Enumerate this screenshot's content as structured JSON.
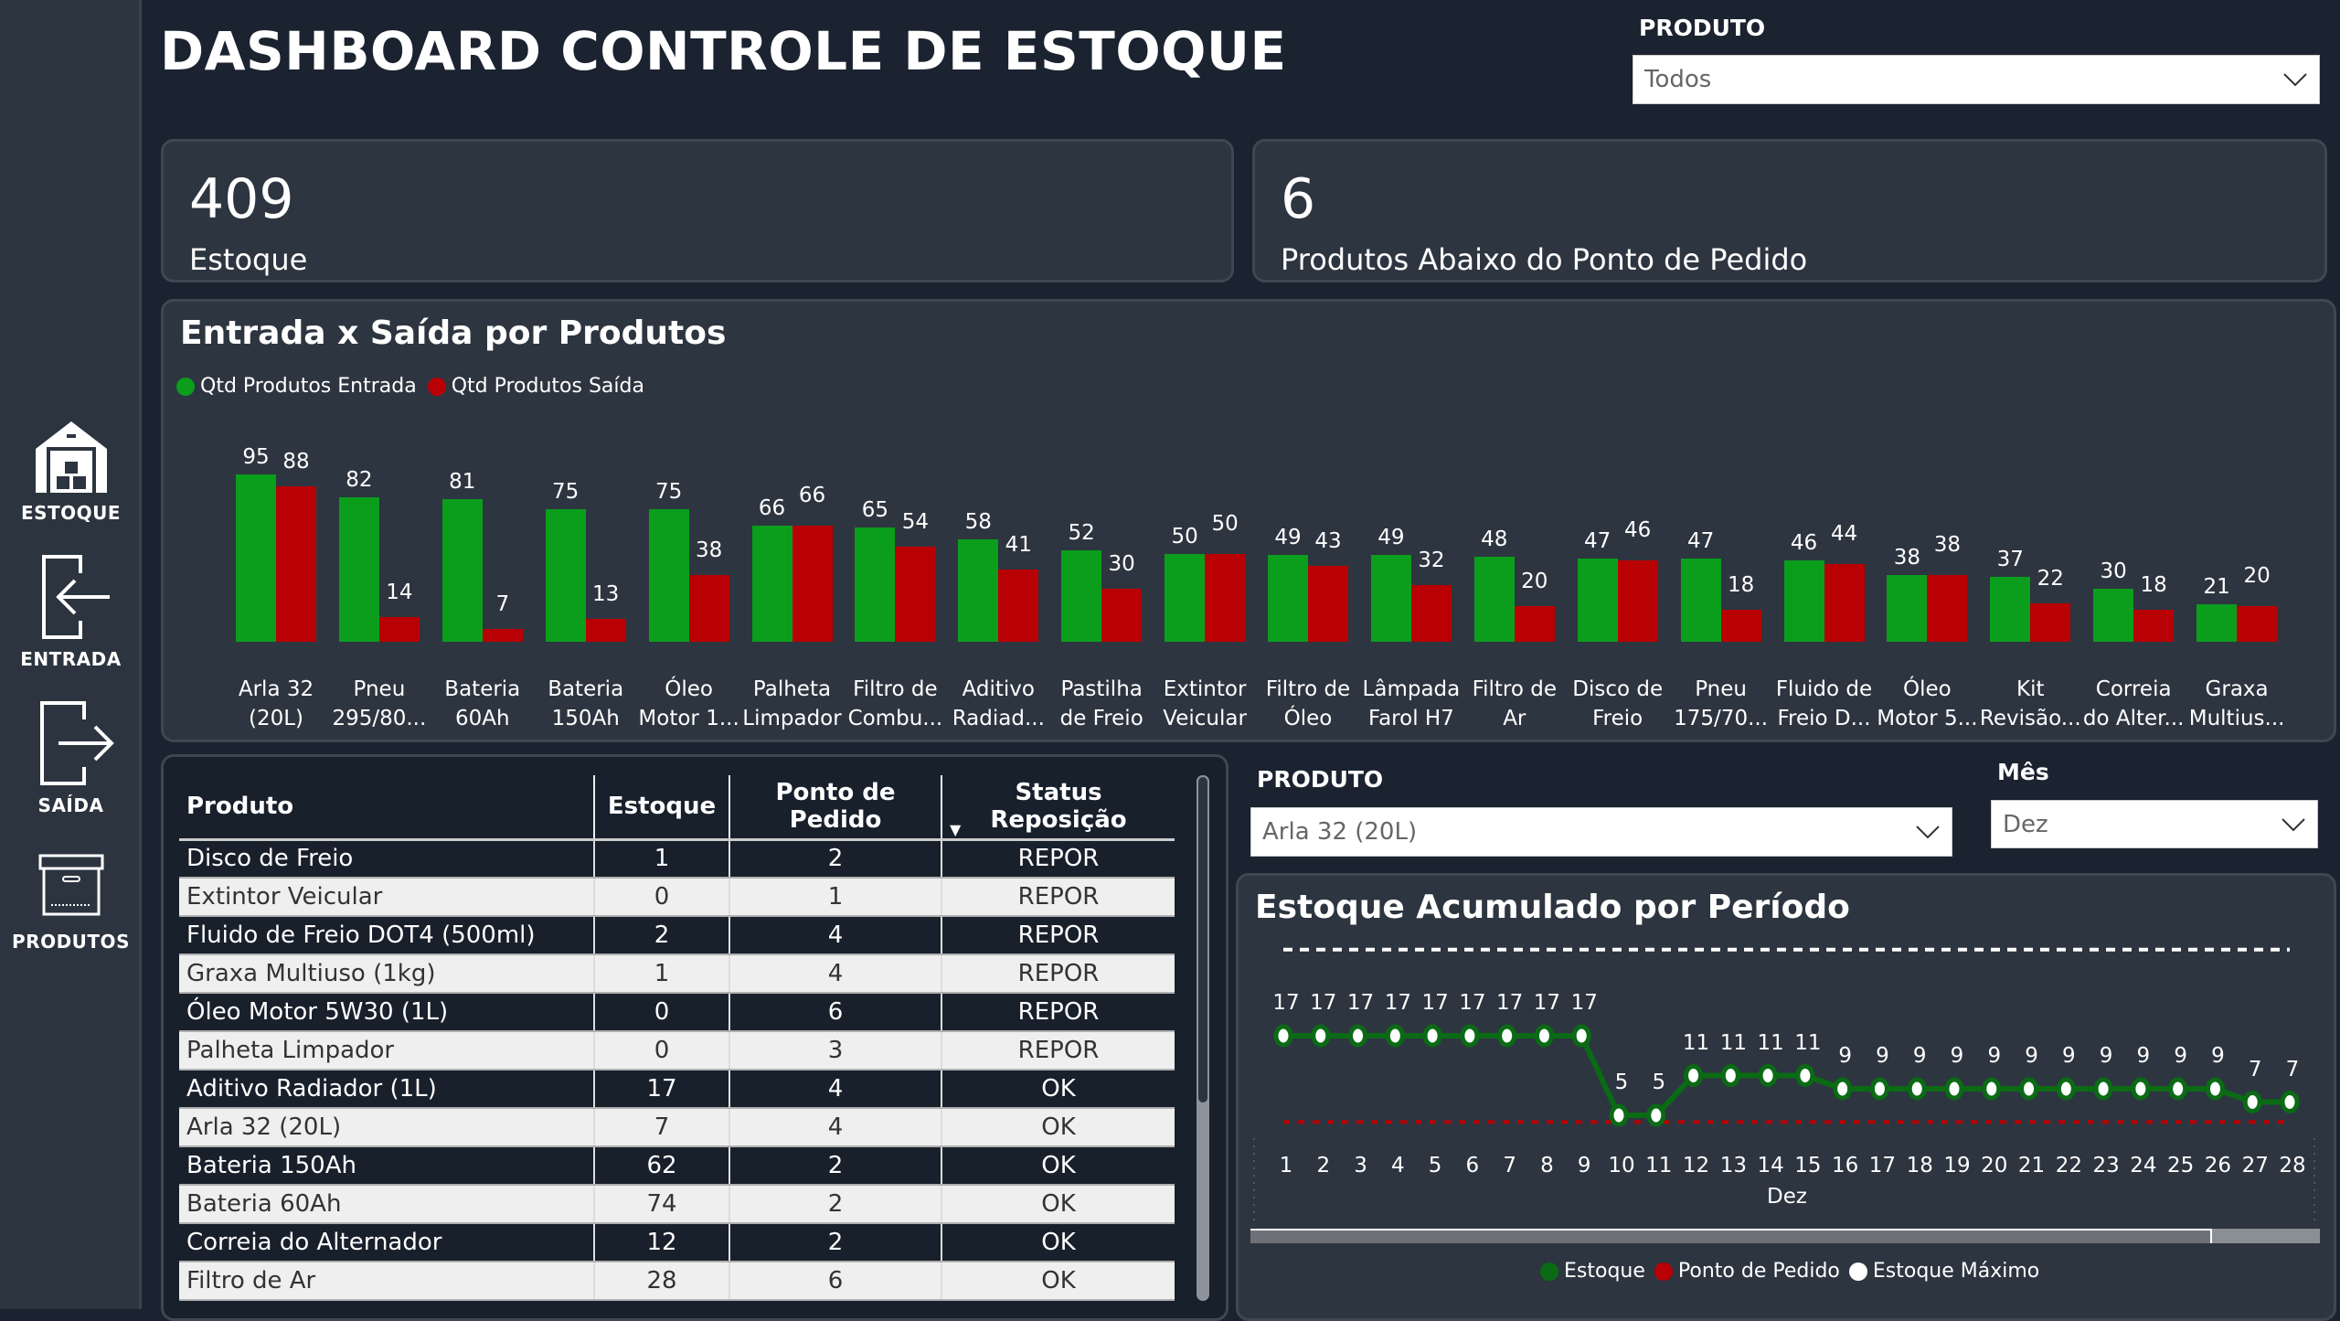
{
  "header": {
    "title": "DASHBOARD CONTROLE DE ESTOQUE"
  },
  "filters": {
    "produto_top": {
      "label": "PRODUTO",
      "value": "Todos"
    },
    "produto_line": {
      "label": "PRODUTO",
      "value": "Arla 32 (20L)"
    },
    "mes": {
      "label": "Mês",
      "value": "Dez"
    }
  },
  "sidebar": {
    "items": [
      {
        "label": "ESTOQUE",
        "icon": "warehouse-icon"
      },
      {
        "label": "ENTRADA",
        "icon": "enter-icon"
      },
      {
        "label": "SAÍDA",
        "icon": "exit-icon"
      },
      {
        "label": "PRODUTOS",
        "icon": "box-icon"
      }
    ]
  },
  "kpis": [
    {
      "value": "409",
      "label": "Estoque"
    },
    {
      "value": "6",
      "label": "Produtos Abaixo do Ponto de Pedido"
    }
  ],
  "colors": {
    "green": "#0a9e1c",
    "red": "#b90004",
    "line_green": "#0a6b14"
  },
  "chart_data": [
    {
      "type": "bar",
      "title": "Entrada x Saída por Produtos",
      "legend": "top-left",
      "categories": [
        [
          "Arla 32",
          "(20L)"
        ],
        [
          "Pneu",
          "295/80..."
        ],
        [
          "Bateria",
          "60Ah"
        ],
        [
          "Bateria",
          "150Ah"
        ],
        [
          "Óleo",
          "Motor 1..."
        ],
        [
          "Palheta",
          "Limpador"
        ],
        [
          "Filtro de",
          "Combu..."
        ],
        [
          "Aditivo",
          "Radiad..."
        ],
        [
          "Pastilha",
          "de Freio"
        ],
        [
          "Extintor",
          "Veicular"
        ],
        [
          "Filtro de",
          "Óleo"
        ],
        [
          "Lâmpada",
          "Farol H7"
        ],
        [
          "Filtro de",
          "Ar"
        ],
        [
          "Disco de",
          "Freio"
        ],
        [
          "Pneu",
          "175/70..."
        ],
        [
          "Fluido de",
          "Freio D..."
        ],
        [
          "Óleo",
          "Motor 5..."
        ],
        [
          "Kit",
          "Revisão..."
        ],
        [
          "Correia",
          "do Alter..."
        ],
        [
          "Graxa",
          "Multius..."
        ]
      ],
      "series": [
        {
          "name": "Qtd Produtos Entrada",
          "values": [
            95,
            82,
            81,
            75,
            75,
            66,
            65,
            58,
            52,
            50,
            49,
            49,
            48,
            47,
            47,
            46,
            38,
            37,
            30,
            21
          ]
        },
        {
          "name": "Qtd Produtos Saída",
          "values": [
            88,
            14,
            7,
            13,
            38,
            66,
            54,
            41,
            30,
            50,
            43,
            32,
            20,
            46,
            18,
            44,
            38,
            22,
            18,
            20
          ]
        }
      ],
      "ylim": [
        0,
        95
      ]
    },
    {
      "type": "line",
      "title": "Estoque Acumulado por Período",
      "xlabel": "Dez",
      "legend": "bottom-center",
      "x": [
        1,
        2,
        3,
        4,
        5,
        6,
        7,
        8,
        9,
        10,
        11,
        12,
        13,
        14,
        15,
        16,
        17,
        18,
        19,
        20,
        21,
        22,
        23,
        24,
        25,
        26,
        27,
        28
      ],
      "series": [
        {
          "name": "Estoque",
          "values": [
            17,
            17,
            17,
            17,
            17,
            17,
            17,
            17,
            17,
            5,
            5,
            11,
            11,
            11,
            11,
            9,
            9,
            9,
            9,
            9,
            9,
            9,
            9,
            9,
            9,
            9,
            7,
            7
          ]
        },
        {
          "name": "Ponto de Pedido",
          "value": 4
        },
        {
          "name": "Estoque Máximo",
          "value": 30
        }
      ]
    }
  ],
  "table": {
    "columns": [
      "Produto",
      "Estoque",
      "Ponto de Pedido",
      "Status Reposição"
    ],
    "rows": [
      [
        "Disco de Freio",
        "1",
        "2",
        "REPOR"
      ],
      [
        "Extintor Veicular",
        "0",
        "1",
        "REPOR"
      ],
      [
        "Fluido de Freio DOT4 (500ml)",
        "2",
        "4",
        "REPOR"
      ],
      [
        "Graxa Multiuso (1kg)",
        "1",
        "4",
        "REPOR"
      ],
      [
        "Óleo Motor 5W30 (1L)",
        "0",
        "6",
        "REPOR"
      ],
      [
        "Palheta Limpador",
        "0",
        "3",
        "REPOR"
      ],
      [
        "Aditivo Radiador (1L)",
        "17",
        "4",
        "OK"
      ],
      [
        "Arla 32 (20L)",
        "7",
        "4",
        "OK"
      ],
      [
        "Bateria 150Ah",
        "62",
        "2",
        "OK"
      ],
      [
        "Bateria 60Ah",
        "74",
        "2",
        "OK"
      ],
      [
        "Correia do Alternador",
        "12",
        "2",
        "OK"
      ],
      [
        "Filtro de Ar",
        "28",
        "6",
        "OK"
      ]
    ]
  }
}
